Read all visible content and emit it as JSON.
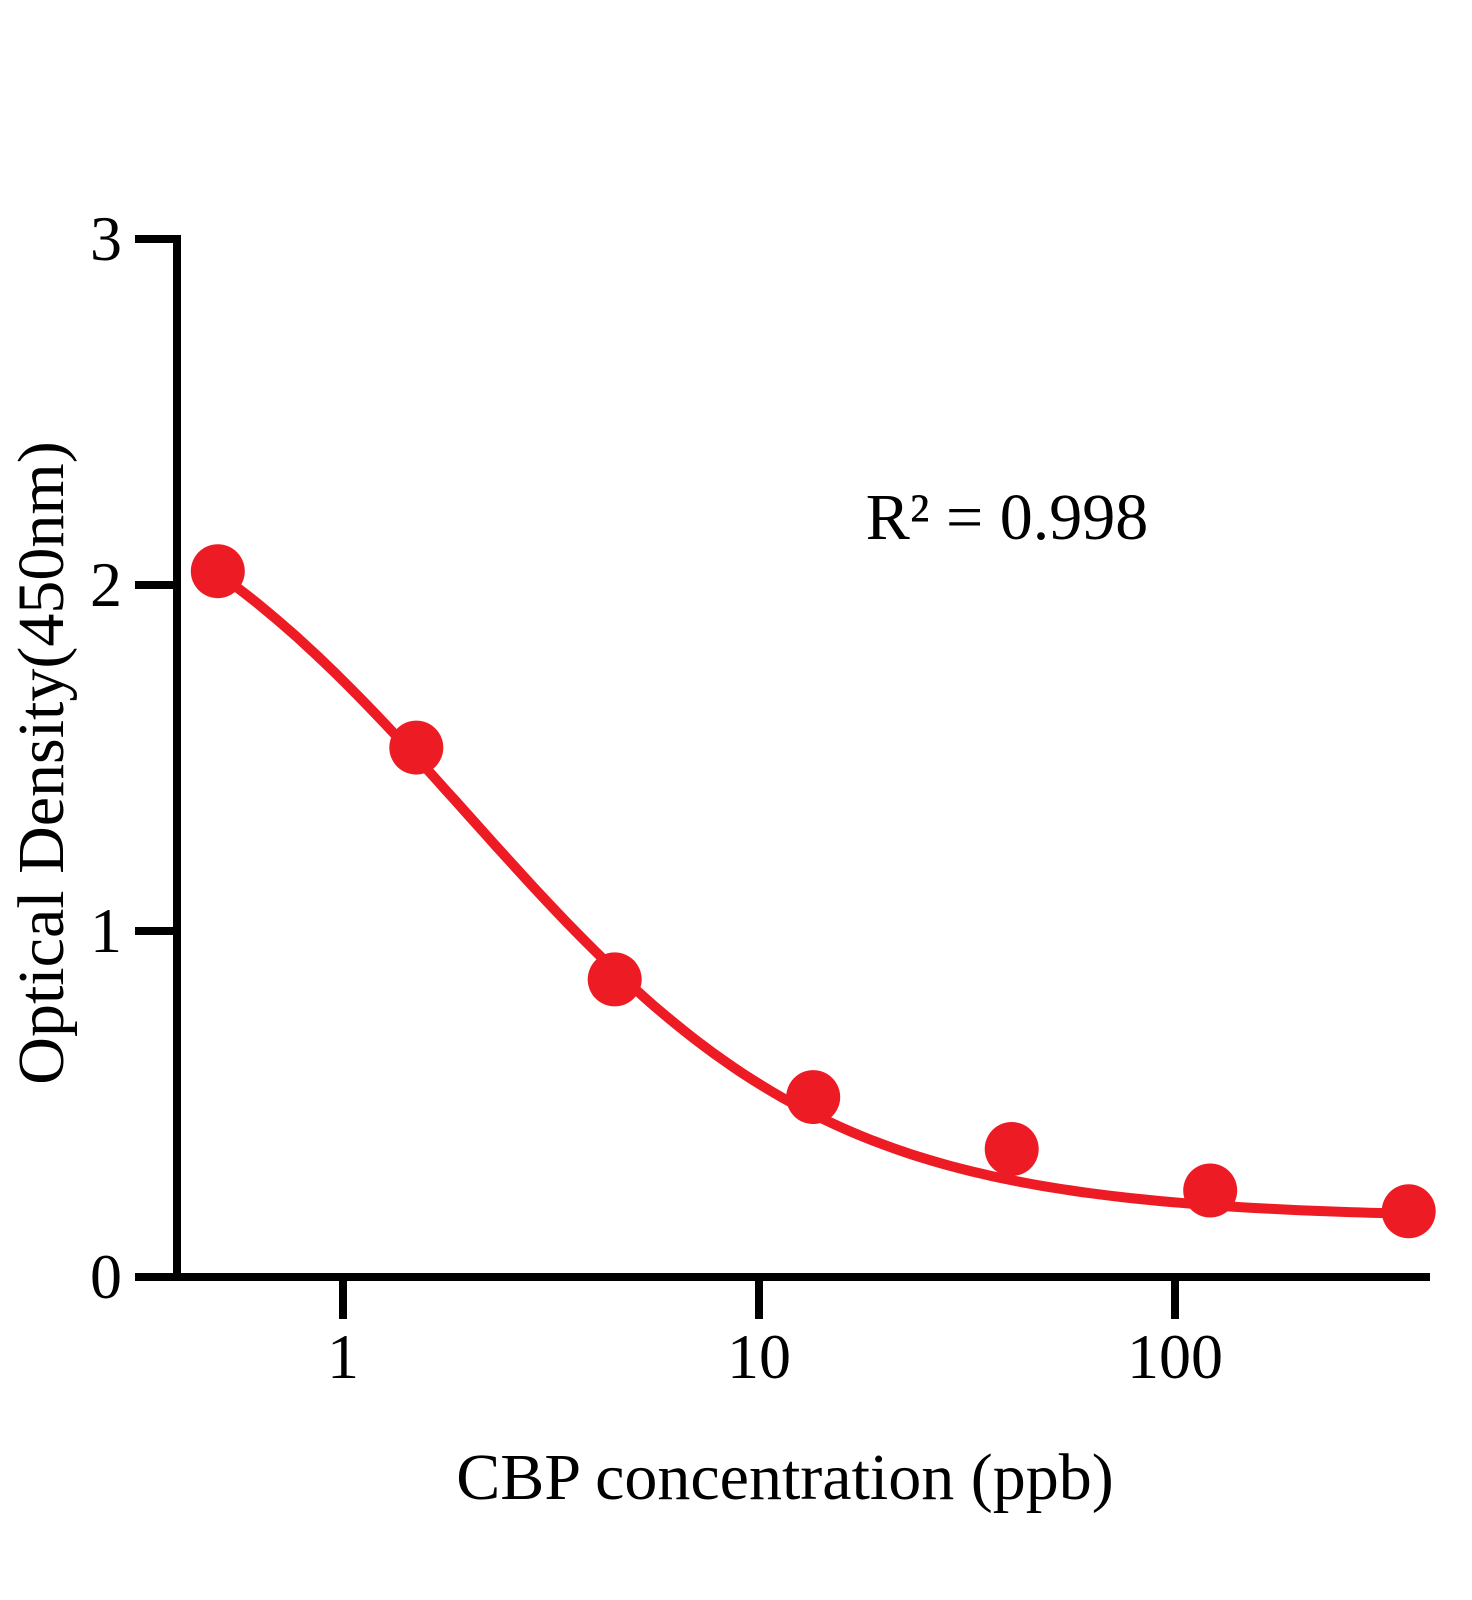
{
  "chart_data": {
    "type": "scatter",
    "title": "",
    "xlabel": "CBP concentration (ppb)",
    "ylabel": "Optical Density(450nm)",
    "annotation": "R² = 0.998",
    "x_axis": {
      "scale": "log10",
      "domain": [
        0.4,
        410
      ],
      "ticks": [
        {
          "value": 1,
          "label": "1"
        },
        {
          "value": 10,
          "label": "10"
        },
        {
          "value": 100,
          "label": "100"
        }
      ]
    },
    "y_axis": {
      "scale": "linear",
      "domain": [
        0,
        3
      ],
      "ticks": [
        {
          "value": 0,
          "label": "0"
        },
        {
          "value": 1,
          "label": "1"
        },
        {
          "value": 2,
          "label": "2"
        },
        {
          "value": 3,
          "label": "3"
        }
      ]
    },
    "series": [
      {
        "points": [
          {
            "x": 0.5,
            "y": 2.04
          },
          {
            "x": 1.5,
            "y": 1.53
          },
          {
            "x": 4.5,
            "y": 0.86
          },
          {
            "x": 13.5,
            "y": 0.52
          },
          {
            "x": 40.5,
            "y": 0.37
          },
          {
            "x": 121.5,
            "y": 0.25
          },
          {
            "x": 364.5,
            "y": 0.19
          }
        ],
        "fit_curve": {
          "model": "4PL",
          "top": 2.5,
          "bottom": 0.17,
          "ec50": 2.0,
          "hill": 1.0,
          "x_start": 0.5,
          "x_end": 364.5
        },
        "color": "#ED1C24"
      }
    ],
    "legend": "none",
    "grid": "off"
  },
  "styles": {
    "axis_color": "#000000",
    "background": "#FFFFFF"
  }
}
